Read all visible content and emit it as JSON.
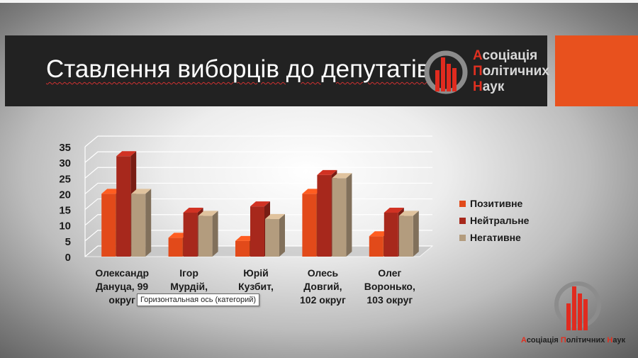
{
  "slide": {
    "title": "Ставлення виборців до депутатів",
    "logo": {
      "line1_first": "А",
      "line1_rest": "соціація",
      "line2_first": "П",
      "line2_rest": "олітичних",
      "line3_first": "Н",
      "line3_rest": "аук"
    },
    "bottom_logo": {
      "p1": "А",
      "p2": "соціація ",
      "p3": "П",
      "p4": "олітичних ",
      "p5": "Н",
      "p6": "аук"
    },
    "tooltip": "Горизонтальная ось (категорий)"
  },
  "chart_data": {
    "type": "bar",
    "title": "",
    "xlabel": "",
    "ylabel": "",
    "ylim": [
      0,
      35
    ],
    "yticks": [
      0,
      5,
      10,
      15,
      20,
      25,
      30,
      35
    ],
    "grid": true,
    "legend_position": "right",
    "categories": [
      [
        "Олександр",
        "Дануца, 99",
        "округ"
      ],
      [
        "Ігор",
        "Мурдій,",
        ""
      ],
      [
        "Юрій",
        "Кузбит,",
        "г"
      ],
      [
        "Олесь",
        "Довгий,",
        "102 округ"
      ],
      [
        "Олег",
        "Воронько,",
        "103 округ"
      ]
    ],
    "series": [
      {
        "name": "Позитивне",
        "color": "#e24a1a",
        "values": [
          20,
          6,
          5,
          20,
          6.5
        ]
      },
      {
        "name": "Нейтральне",
        "color": "#a7281c",
        "values": [
          32,
          14,
          16,
          26,
          14
        ]
      },
      {
        "name": "Негативне",
        "color": "#b39c7e",
        "values": [
          20,
          13,
          12,
          25,
          13
        ]
      }
    ]
  }
}
